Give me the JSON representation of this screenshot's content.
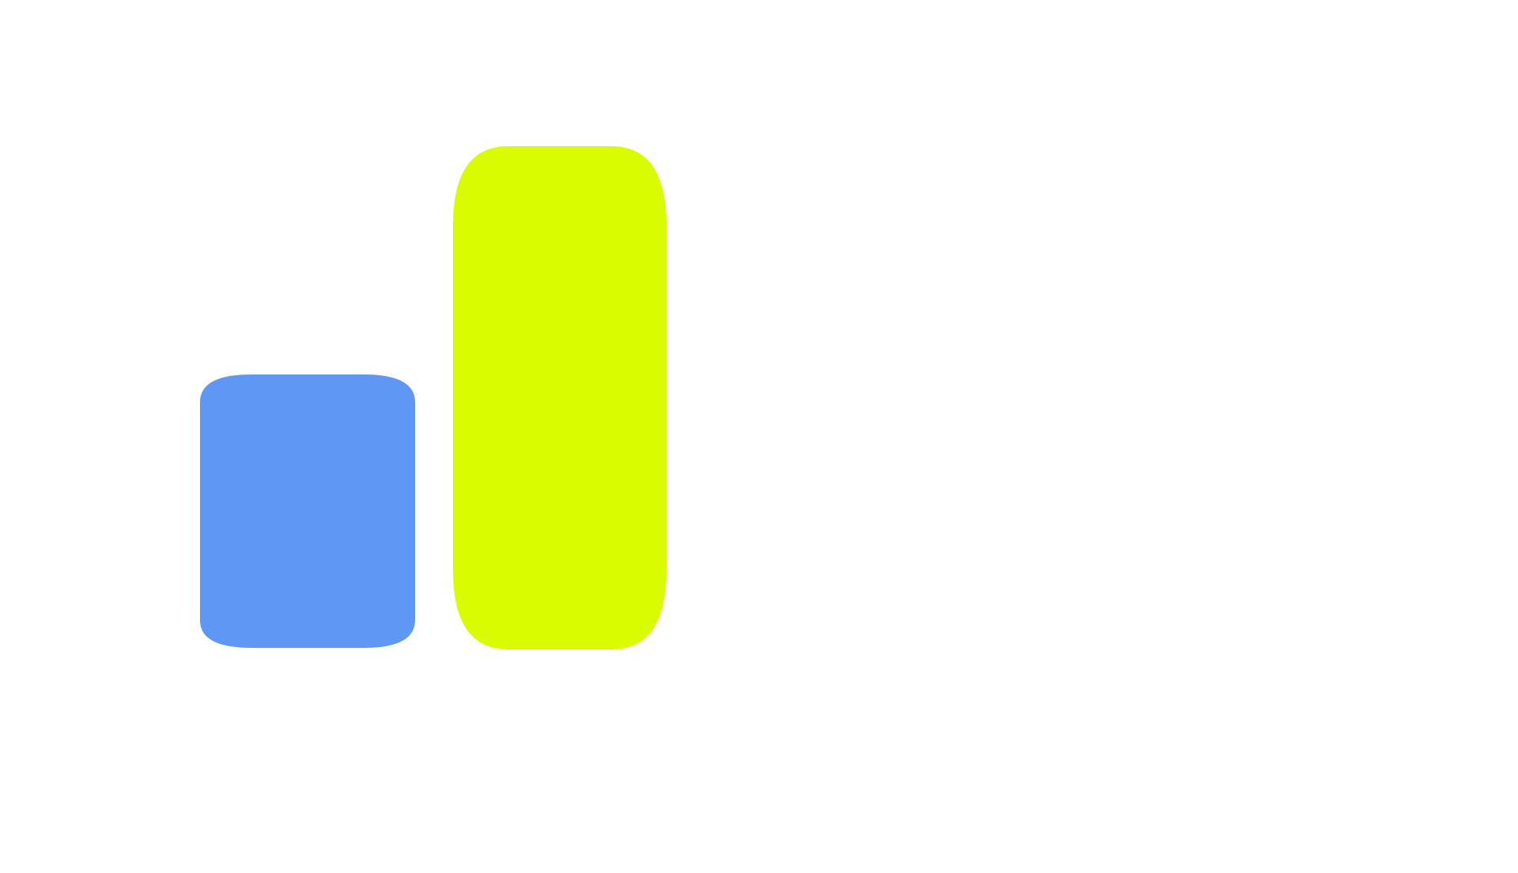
{
  "graphic": {
    "shapes": [
      {
        "name": "short-blue-bar",
        "color": "#5e98f4"
      },
      {
        "name": "tall-yellow-bar",
        "color": "#d9fd00"
      }
    ],
    "background": "#ffffff"
  }
}
